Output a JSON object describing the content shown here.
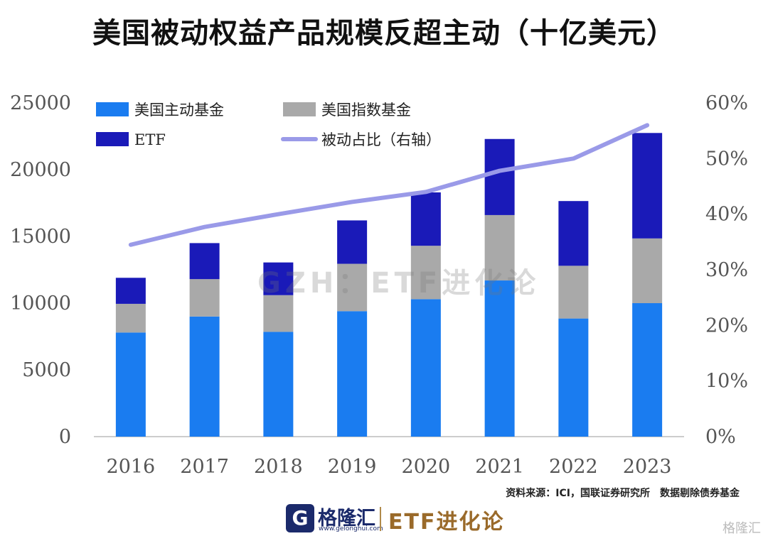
{
  "title": "美国被动权益产品规模反超主动（十亿美元）",
  "watermark": "GZH：ETF进化论",
  "source": {
    "left": "资料来源：ICI，国联证券研究所",
    "right": "数据剔除债券基金"
  },
  "footer": {
    "logo_glyph": "G",
    "logo_name": "格隆汇",
    "logo_url": "www.gelonghui.com",
    "brand": "ETF进化论",
    "corner_mark": "格隆汇"
  },
  "colors": {
    "active": "#1a7cf0",
    "index": "#a9a9a9",
    "etf": "#1a1ab8",
    "ratio_line": "#9a9ae8",
    "axis": "#bbbbbb"
  },
  "chart_data": {
    "type": "bar",
    "stacked": true,
    "categories": [
      "2016",
      "2017",
      "2018",
      "2019",
      "2020",
      "2021",
      "2022",
      "2023"
    ],
    "series": [
      {
        "name": "美国主动基金",
        "type": "bar",
        "axis": "left",
        "values": [
          7800,
          9000,
          7850,
          9400,
          10300,
          11700,
          8850,
          10000
        ]
      },
      {
        "name": "美国指数基金",
        "type": "bar",
        "axis": "left",
        "values": [
          2150,
          2800,
          2750,
          3550,
          4000,
          4900,
          3950,
          4850
        ]
      },
      {
        "name": "ETF",
        "type": "bar",
        "axis": "left",
        "values": [
          1950,
          2700,
          2450,
          3250,
          4000,
          5700,
          4850,
          7900
        ]
      },
      {
        "name": "被动占比（右轴）",
        "type": "line",
        "axis": "right",
        "values": [
          0.345,
          0.377,
          0.4,
          0.422,
          0.44,
          0.478,
          0.5,
          0.56
        ]
      }
    ],
    "ylim": [
      0,
      25000
    ],
    "yticks": [
      "0",
      "5000",
      "10000",
      "15000",
      "20000",
      "25000"
    ],
    "y2lim": [
      0,
      0.6
    ],
    "y2ticks": [
      "0%",
      "10%",
      "20%",
      "30%",
      "40%",
      "50%",
      "60%"
    ],
    "legend_position": "top-left"
  }
}
